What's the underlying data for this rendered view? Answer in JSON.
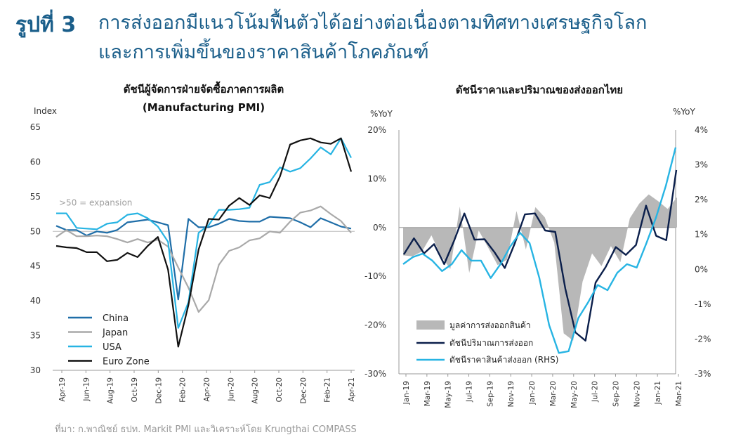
{
  "figure": {
    "label": "รูปที่ 3",
    "title_line1": "การส่งออกมีแนวโน้มฟื้นตัวได้อย่างต่อเนื่องตามทิศทางเศรษฐกิจโลก",
    "title_line2": "และการเพิ่มขึ้นของราคาสินค้าโภคภัณฑ์",
    "source": "ที่มา: ก.พาณิชย์ ธปท. Markit PMI และวิเคราะห์โดย Krungthai COMPASS"
  },
  "colors": {
    "title": "#1a5e8a",
    "china": "#1f6ea8",
    "japan": "#a9a9a9",
    "usa": "#27b4e3",
    "euro": "#111111",
    "export_value": "#b8b8b8",
    "export_volume": "#0b1f4b",
    "export_price": "#27b4e3"
  },
  "chart_data": [
    {
      "type": "line",
      "title_line1": "ดัชนีผู้จัดการฝ่ายจัดซื้อภาคการผลิต",
      "title_line2": "(Manufacturing PMI)",
      "ylabel": "Index",
      "ylim": [
        30,
        65
      ],
      "yticks": [
        30,
        35,
        40,
        45,
        50,
        55,
        60,
        65
      ],
      "xtick_labels": [
        "Apr-19",
        "Jun-19",
        "Aug-19",
        "Oct-19",
        "Dec-19",
        "Feb-20",
        "Apr-20",
        "Jun-20",
        "Aug-20",
        "Oct-20",
        "Dec-20",
        "Feb-21",
        "Apr-21"
      ],
      "annotation": ">50 = expansion",
      "legend_position": "bottom-left",
      "series": [
        {
          "name": "China",
          "values": [
            50.8,
            50.2,
            50.2,
            49.4,
            50.0,
            49.8,
            50.2,
            51.3,
            51.5,
            51.7,
            51.3,
            50.9,
            40.2,
            51.8,
            50.6,
            50.6,
            51.1,
            51.8,
            51.5,
            51.4,
            51.4,
            52.1,
            52.0,
            51.9,
            51.3,
            50.6,
            51.9,
            51.3,
            50.7,
            50.4
          ]
        },
        {
          "name": "Japan",
          "values": [
            49.2,
            50.2,
            49.3,
            49.3,
            49.4,
            49.3,
            48.9,
            48.4,
            48.9,
            48.4,
            48.8,
            47.8,
            44.8,
            41.9,
            38.4,
            40.1,
            45.2,
            47.2,
            47.7,
            48.7,
            49.0,
            50.0,
            49.8,
            51.4,
            52.7,
            53.0,
            53.6,
            52.5,
            51.5,
            49.8
          ]
        },
        {
          "name": "USA",
          "values": [
            52.6,
            52.6,
            50.5,
            50.4,
            50.3,
            51.1,
            51.3,
            52.4,
            52.6,
            51.9,
            50.7,
            48.5,
            36.1,
            39.8,
            49.8,
            50.9,
            53.1,
            53.1,
            53.2,
            53.4,
            56.7,
            57.1,
            59.2,
            58.6,
            59.1,
            60.5,
            62.1,
            61.1,
            63.4,
            60.6
          ]
        },
        {
          "name": "Euro Zone",
          "values": [
            47.9,
            47.7,
            47.6,
            47.0,
            47.0,
            45.7,
            45.9,
            46.9,
            46.3,
            47.9,
            49.2,
            44.5,
            33.4,
            39.4,
            47.4,
            51.8,
            51.7,
            53.7,
            54.8,
            53.8,
            55.2,
            54.8,
            57.9,
            62.5,
            63.1,
            63.4,
            62.8,
            62.6,
            63.4,
            58.6
          ]
        }
      ]
    },
    {
      "type": "line",
      "title": "ดัชนีราคาและปริมาณของส่งออกไทย",
      "ylabel_left": "%YoY",
      "ylabel_right": "%YoY",
      "ylim_left": [
        -30,
        20
      ],
      "ylim_right": [
        -3,
        4
      ],
      "yticks_left": [
        "-30%",
        "-20%",
        "-10%",
        "0%",
        "10%",
        "20%"
      ],
      "yticks_right": [
        "-3%",
        "-2%",
        "-1%",
        "0%",
        "1%",
        "2%",
        "3%",
        "4%"
      ],
      "xtick_labels": [
        "Jan-19",
        "Mar-19",
        "May-19",
        "Jul-19",
        "Sep-19",
        "Nov-19",
        "Jan-20",
        "Mar-20",
        "May-20",
        "Jul-20",
        "Sep-20",
        "Nov-20",
        "Jan-21",
        "Mar-21"
      ],
      "legend_position": "bottom-left",
      "series": [
        {
          "name": "มูลค่าการส่งออกสินค้า",
          "axis": "left",
          "kind": "area",
          "values": [
            -5.7,
            -5.9,
            -4.9,
            -1.6,
            -5.8,
            -8.5,
            4.3,
            -9.3,
            -0.6,
            -4.1,
            -7.7,
            -6.6,
            3.4,
            -4.5,
            4.2,
            2.1,
            -3.1,
            -21.7,
            -23.2,
            -11.1,
            -5.3,
            -7.9,
            -3.8,
            -7.1,
            1.9,
            4.9,
            6.8,
            5.4,
            3.8,
            6.2
          ]
        },
        {
          "name": "ดัชนีปริมาณการส่งออก",
          "axis": "left",
          "kind": "line",
          "values": [
            -5.5,
            -2.2,
            -5.3,
            -3.4,
            -7.5,
            -2.6,
            2.9,
            -2.5,
            -2.4,
            -5.1,
            -8.3,
            -3.2,
            2.7,
            2.9,
            -0.6,
            -0.9,
            -12.5,
            -21.5,
            -23.2,
            -11.3,
            -8.1,
            -4.0,
            -5.6,
            -3.6,
            4.5,
            -1.7,
            -2.6,
            11.8
          ]
        },
        {
          "name": "ดัชนีราคาสินค้าส่งออก (RHS)",
          "axis": "right",
          "kind": "line",
          "values": [
            0.15,
            0.35,
            0.45,
            0.25,
            -0.05,
            0.15,
            0.55,
            0.25,
            0.25,
            -0.25,
            0.15,
            0.65,
            1.05,
            0.75,
            -0.25,
            -1.6,
            -2.4,
            -2.35,
            -1.4,
            -0.95,
            -0.45,
            -0.6,
            -0.1,
            0.15,
            0.05,
            0.75,
            1.5,
            2.4,
            3.5
          ]
        }
      ]
    }
  ]
}
